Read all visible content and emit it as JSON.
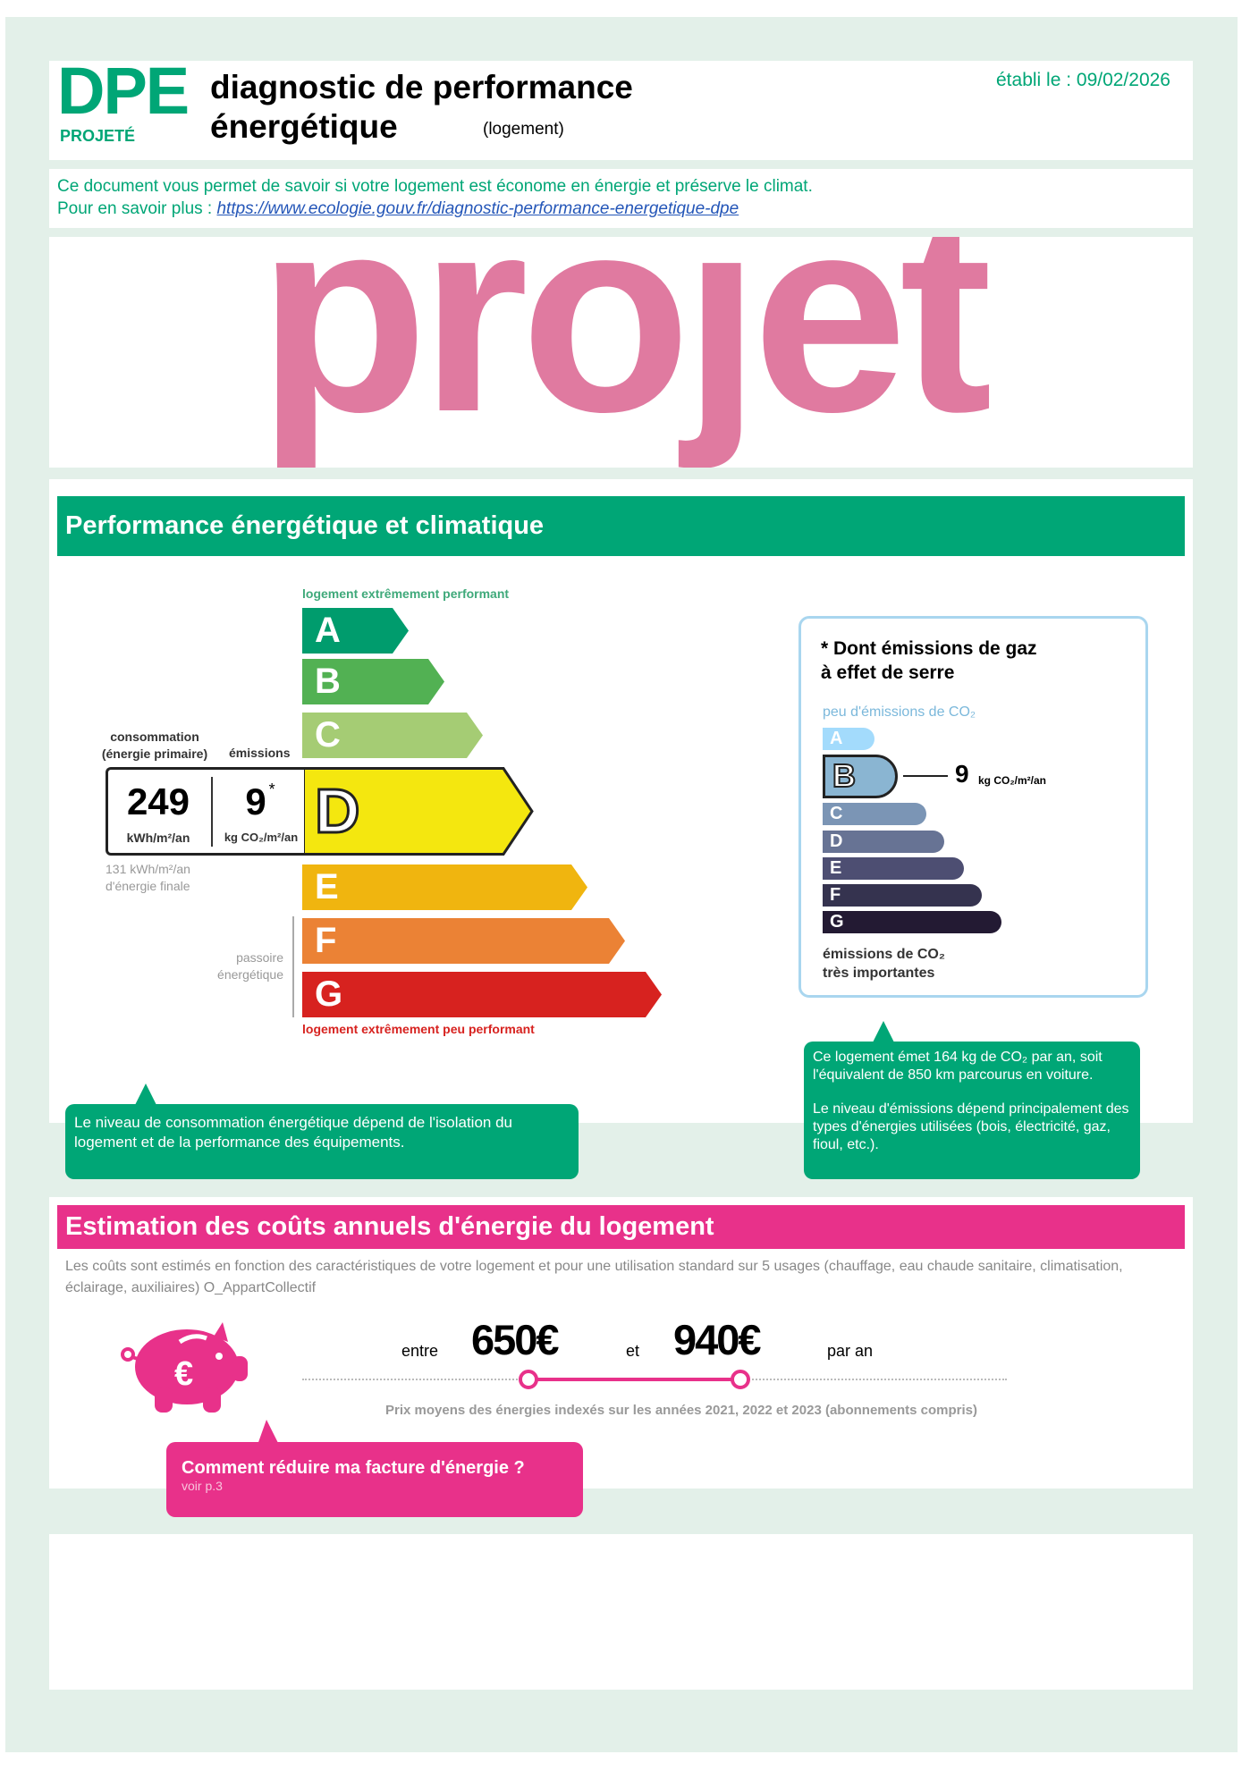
{
  "header": {
    "logo": "DPE",
    "logo_sub": "PROJETÉ",
    "title_line1": "diagnostic de performance",
    "title_line2": "énergétique",
    "subtitle": "(logement)",
    "date": "établi le : 09/02/2026"
  },
  "info": {
    "line1": "Ce document vous permet de savoir si votre logement est économe en énergie et préserve le climat.",
    "line2_prefix": "Pour en savoir plus :",
    "link": "https://www.ecologie.gouv.fr/diagnostic-performance-energetique-dpe"
  },
  "watermark": "projet",
  "performance": {
    "title": "Performance énergétique et climatique",
    "top_label": "logement extrêmement performant",
    "bottom_label": "logement extrêmement peu performant",
    "classes": [
      "A",
      "B",
      "C",
      "D",
      "E",
      "F",
      "G"
    ],
    "current_class": "D",
    "consumption_label_1": "consommation",
    "consumption_label_2": "(énergie primaire)",
    "emissions_label": "émissions",
    "consumption_value": "249",
    "consumption_unit": "kWh/m²/an",
    "emissions_value": "9",
    "emissions_star": "*",
    "emissions_unit": "kg CO₂/m²/an",
    "final_energy_1": "131 kWh/m²/an",
    "final_energy_2": "d'énergie finale",
    "passoire_1": "passoire",
    "passoire_2": "énergétique",
    "colors": {
      "A": "#009c6d",
      "B": "#52b153",
      "C": "#a5cc74",
      "D": "#f4e70f",
      "E": "#f0b50f",
      "F": "#eb8235",
      "G": "#d7221f"
    },
    "bubble_text": "Le niveau de consommation énergétique dépend de l'isolation du logement et de la performance des équipements."
  },
  "ges": {
    "title_1": "* Dont émissions de gaz",
    "title_2": "à effet de serre",
    "top_label": "peu d'émissions de CO₂",
    "classes": [
      "A",
      "B",
      "C",
      "D",
      "E",
      "F",
      "G"
    ],
    "current_class": "B",
    "value": "9",
    "unit": "kg CO₂/m²/an",
    "bottom_label_1": "émissions de CO₂",
    "bottom_label_2": "très importantes",
    "colors": {
      "A": "#a3dbfc",
      "B": "#8ab5d2",
      "C": "#7b95b5",
      "D": "#677394",
      "E": "#4d4e72",
      "F": "#35334f",
      "G": "#231a33"
    },
    "bubble_text_1": "Ce logement émet 164 kg de CO₂ par an, soit l'équivalent de 850 km parcourus en voiture.",
    "bubble_text_2": "Le niveau d'émissions dépend principalement des types d'énergies utilisées (bois, électricité, gaz, fioul, etc.)."
  },
  "costs": {
    "title": "Estimation des coûts annuels d'énergie du logement",
    "description": "Les coûts sont estimés en fonction des caractéristiques de votre logement et pour une utilisation standard sur 5 usages (chauffage, eau chaude sanitaire, climatisation, éclairage, auxiliaires) O_AppartCollectif",
    "between": "entre",
    "min": "650€",
    "and": "et",
    "max": "940€",
    "per_year": "par an",
    "note": "Prix moyens des énergies indexés sur les années 2021, 2022 et 2023 (abonnements compris)",
    "tip_title": "Comment réduire ma facture d'énergie ?",
    "tip_sub": "voir p.3"
  },
  "accent": {
    "green": "#00a676",
    "pink": "#e8318a",
    "watermark": "#e07aa0"
  }
}
